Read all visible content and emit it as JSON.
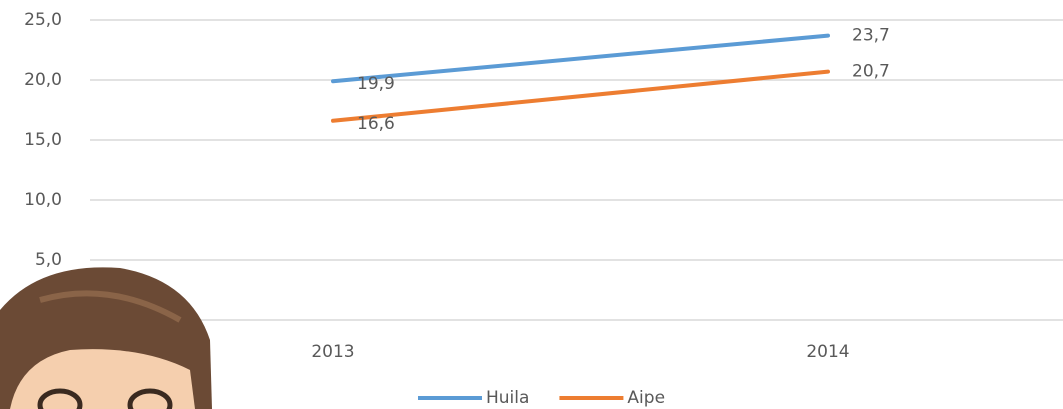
{
  "chart_data": {
    "type": "line",
    "categories": [
      "2013",
      "2014"
    ],
    "series": [
      {
        "name": "Huila",
        "color": "#5b9bd5",
        "values": [
          19.9,
          23.7
        ],
        "value_labels": [
          "19,9",
          "23,7"
        ]
      },
      {
        "name": "Aipe",
        "color": "#ed7d31",
        "values": [
          16.6,
          20.7
        ],
        "value_labels": [
          "16,6",
          "20,7"
        ]
      }
    ],
    "ylim": [
      0,
      25
    ],
    "yticks": [
      {
        "value": 5,
        "label": "5,0"
      },
      {
        "value": 10,
        "label": "10,0"
      },
      {
        "value": 15,
        "label": "15,0"
      },
      {
        "value": 20,
        "label": "20,0"
      },
      {
        "value": 25,
        "label": "25,0"
      }
    ],
    "grid": true,
    "legend": "bottom"
  }
}
